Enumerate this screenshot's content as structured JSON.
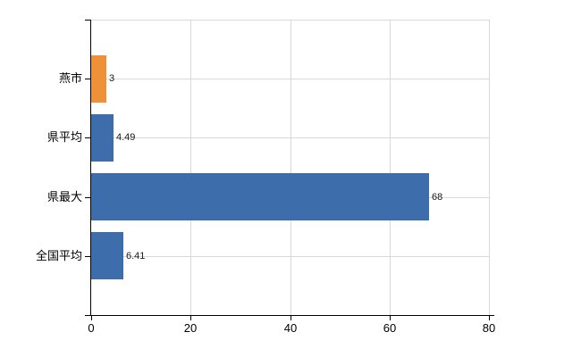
{
  "chart_data": {
    "type": "bar",
    "orientation": "horizontal",
    "title": "",
    "categories": [
      "燕市",
      "県平均",
      "県最大",
      "全国平均"
    ],
    "values": [
      3,
      4.49,
      68,
      6.41
    ],
    "value_labels": [
      "3",
      "4.49",
      "68",
      "6.41"
    ],
    "bar_colors": [
      "#EF9138",
      "#3D6DAB",
      "#3D6DAB",
      "#3D6DAB"
    ],
    "x_tick_values": [
      0,
      20,
      40,
      60,
      80
    ],
    "x_tick_labels": [
      "0",
      "20",
      "40",
      "60",
      "80"
    ],
    "xlim": [
      0,
      80
    ],
    "grid": true,
    "legend": "none",
    "xlabel": "",
    "ylabel": ""
  },
  "colors": {
    "background": "#ffffff",
    "axis": "#000000",
    "gridline": "#d9d9d9",
    "value_label": "#1a1a1a",
    "tick_label": "#000000",
    "bar_blue": "#3D6DAB",
    "bar_orange": "#EF9138"
  }
}
